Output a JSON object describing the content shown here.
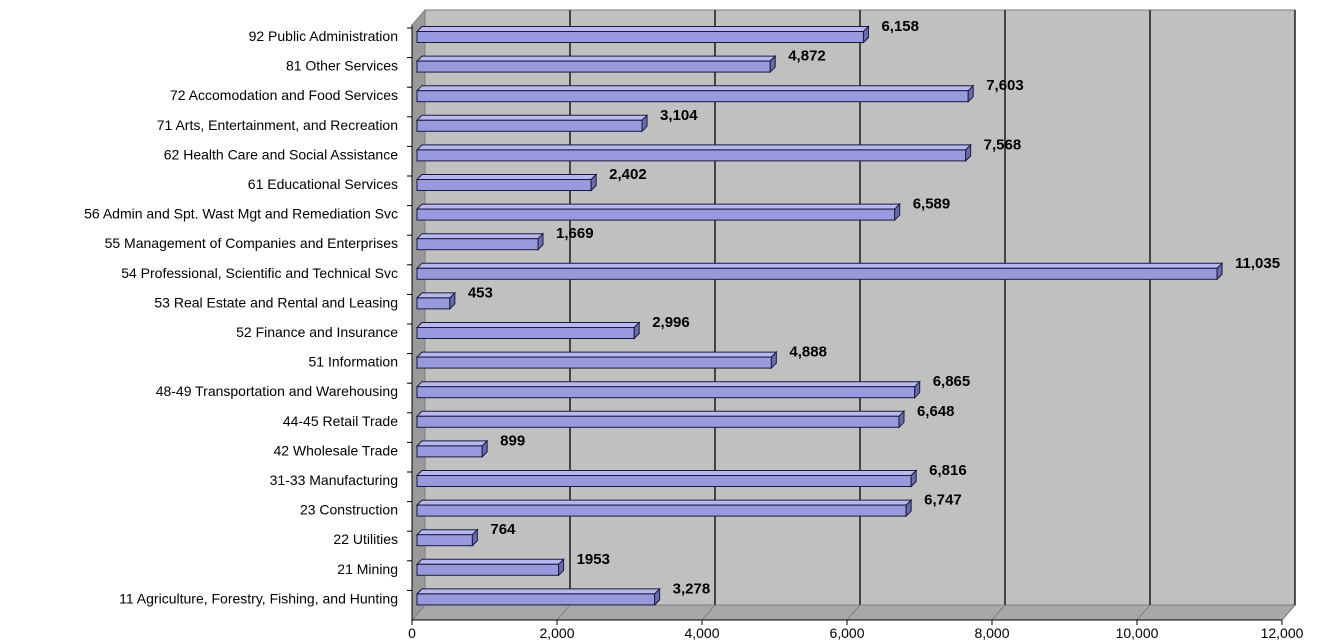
{
  "chart_data": {
    "type": "bar",
    "orientation": "horizontal",
    "style": "3d",
    "bar_color": "#9999dd",
    "plot_background": "#c0c0c0",
    "grid": true,
    "categories": [
      "92 Public Administration",
      "81 Other Services",
      "72 Accomodation and Food Services",
      "71 Arts, Entertainment, and Recreation",
      "62 Health Care and Social Assistance",
      "61 Educational Services",
      "56 Admin and Spt. Wast Mgt and Remediation Svc",
      "55 Management of Companies and Enterprises",
      "54 Professional, Scientific and Technical Svc",
      "53 Real Estate and Rental and Leasing",
      "52 Finance and Insurance",
      "51 Information",
      "48-49 Transportation and Warehousing",
      "44-45 Retail Trade",
      "42 Wholesale Trade",
      "31-33 Manufacturing",
      "23 Construction",
      "22 Utilities",
      "21 Mining",
      "11 Agriculture, Forestry, Fishing, and Hunting"
    ],
    "values": [
      6158,
      4872,
      7603,
      3104,
      7568,
      2402,
      6589,
      1669,
      11035,
      453,
      2996,
      4888,
      6865,
      6648,
      899,
      6816,
      6747,
      764,
      1953,
      3278
    ],
    "value_labels": [
      "6,158",
      "4,872",
      "7,603",
      "3,104",
      "7,568",
      "2,402",
      "6,589",
      "1,669",
      "11,035",
      "453",
      "2,996",
      "4,888",
      "6,865",
      "6,648",
      "899",
      "6,816",
      "6,747",
      "764",
      "1953",
      "3,278"
    ],
    "xlim": [
      0,
      12000
    ],
    "x_ticks": [
      0,
      2000,
      4000,
      6000,
      8000,
      10000,
      12000
    ],
    "x_tick_labels": [
      "0",
      "2,000",
      "4,000",
      "6,000",
      "8,000",
      "10,000",
      "12,000"
    ]
  }
}
